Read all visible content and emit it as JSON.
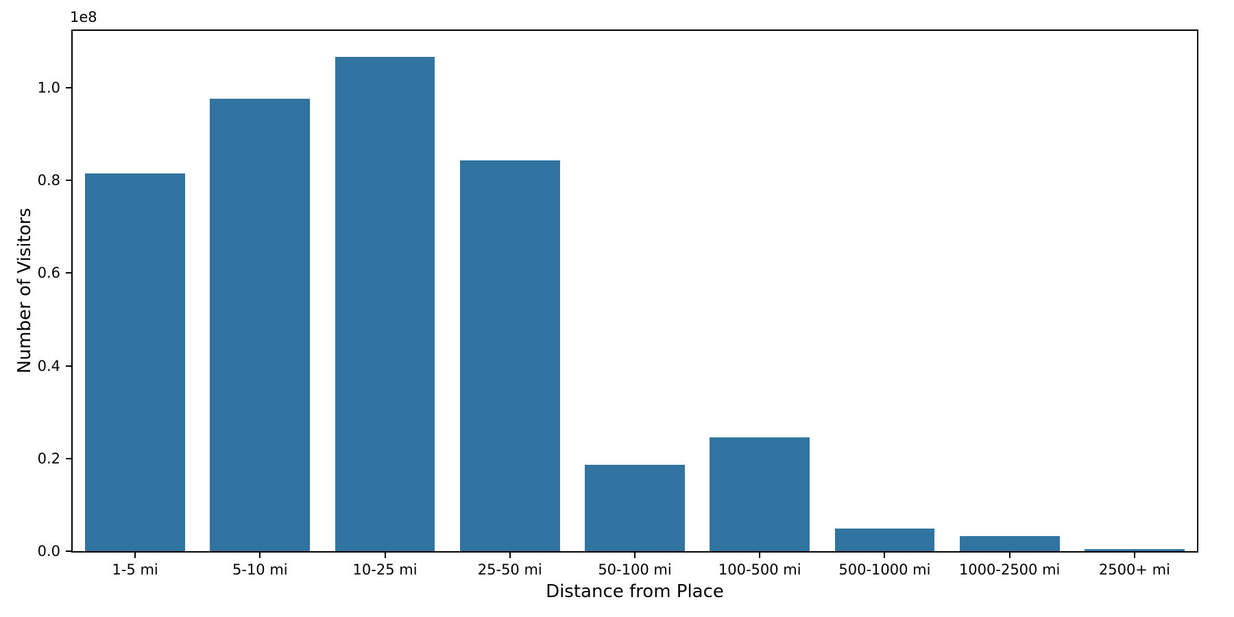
{
  "figure": {
    "background": "#ffffff",
    "spine_color": "#000000",
    "text_color": "#000000"
  },
  "chart_data": {
    "type": "bar",
    "title": "",
    "xlabel": "Distance from Place",
    "ylabel": "Number of Visitors",
    "offset_text": "1e8",
    "categories": [
      "1-5 mi",
      "5-10 mi",
      "10-25 mi",
      "25-50 mi",
      "50-100 mi",
      "100-500 mi",
      "500-1000 mi",
      "1000-2500 mi",
      "2500+ mi"
    ],
    "values": [
      81500000,
      97600000,
      106700000,
      84300000,
      18700000,
      24500000,
      4900000,
      3200000,
      400000
    ],
    "bar_color": "#3274a1",
    "bar_width_fraction": 0.8,
    "ylim": [
      0,
      112300000
    ],
    "ytick_values": [
      0,
      20000000,
      40000000,
      60000000,
      80000000,
      100000000
    ],
    "ytick_labels": [
      "0.0",
      "0.2",
      "0.4",
      "0.6",
      "0.8",
      "1.0"
    ],
    "grid": false,
    "legend_position": "none"
  }
}
